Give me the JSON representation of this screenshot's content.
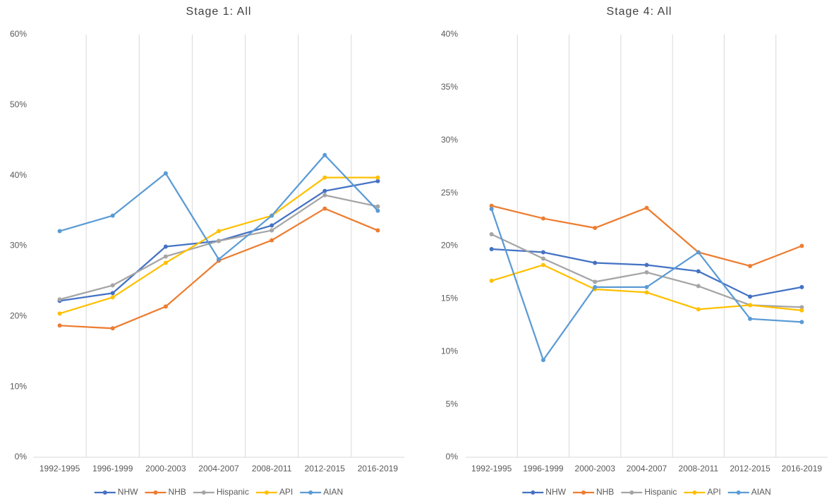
{
  "chart_data": [
    {
      "type": "line",
      "title": "Stage 1: All",
      "categories": [
        "1992-1995",
        "1996-1999",
        "2000-2003",
        "2004-2007",
        "2008-2011",
        "2012-2015",
        "2016-2019"
      ],
      "ylim": [
        0,
        60
      ],
      "yticks": [
        {
          "value": 0,
          "label": "0%"
        },
        {
          "value": 10,
          "label": "10%"
        },
        {
          "value": 20,
          "label": "20%"
        },
        {
          "value": 30,
          "label": "30%"
        },
        {
          "value": 40,
          "label": "40%"
        },
        {
          "value": 50,
          "label": "50%"
        },
        {
          "value": 60,
          "label": "60%"
        }
      ],
      "grid": true,
      "series": [
        {
          "name": "NHW",
          "color": "#4472c4",
          "values": [
            22.2,
            23.3,
            29.9,
            30.7,
            32.9,
            37.8,
            39.2
          ]
        },
        {
          "name": "NHB",
          "color": "#ed7d31",
          "values": [
            18.7,
            18.3,
            21.4,
            27.9,
            30.8,
            35.3,
            32.2
          ]
        },
        {
          "name": "Hispanic",
          "color": "#a5a5a5",
          "values": [
            22.4,
            24.4,
            28.5,
            30.7,
            32.2,
            37.2,
            35.6
          ]
        },
        {
          "name": "API",
          "color": "#ffc000",
          "values": [
            20.4,
            22.7,
            27.6,
            32.1,
            34.3,
            39.7,
            39.7
          ]
        },
        {
          "name": "AIAN",
          "color": "#5b9bd5",
          "values": [
            32.1,
            34.3,
            40.3,
            28.1,
            34.3,
            42.9,
            35.0
          ]
        }
      ]
    },
    {
      "type": "line",
      "title": "Stage 4: All",
      "categories": [
        "1992-1995",
        "1996-1999",
        "2000-2003",
        "2004-2007",
        "2008-2011",
        "2012-2015",
        "2016-2019"
      ],
      "ylim": [
        0,
        40
      ],
      "yticks": [
        {
          "value": 0,
          "label": "0%"
        },
        {
          "value": 5,
          "label": "5%"
        },
        {
          "value": 10,
          "label": "10%"
        },
        {
          "value": 15,
          "label": "15%"
        },
        {
          "value": 20,
          "label": "20%"
        },
        {
          "value": 25,
          "label": "25%"
        },
        {
          "value": 30,
          "label": "30%"
        },
        {
          "value": 35,
          "label": "35%"
        },
        {
          "value": 40,
          "label": "40%"
        }
      ],
      "grid": true,
      "series": [
        {
          "name": "NHW",
          "color": "#4472c4",
          "values": [
            19.7,
            19.4,
            18.4,
            18.2,
            17.6,
            15.2,
            16.1
          ]
        },
        {
          "name": "NHB",
          "color": "#ed7d31",
          "values": [
            23.8,
            22.6,
            21.7,
            23.6,
            19.4,
            18.1,
            20.0
          ]
        },
        {
          "name": "Hispanic",
          "color": "#a5a5a5",
          "values": [
            21.1,
            18.8,
            16.6,
            17.5,
            16.2,
            14.4,
            14.2
          ]
        },
        {
          "name": "API",
          "color": "#ffc000",
          "values": [
            16.7,
            18.2,
            15.9,
            15.6,
            14.0,
            14.4,
            13.9
          ]
        },
        {
          "name": "AIAN",
          "color": "#5b9bd5",
          "values": [
            23.5,
            9.2,
            16.1,
            16.1,
            19.4,
            13.1,
            12.8
          ]
        }
      ]
    }
  ]
}
